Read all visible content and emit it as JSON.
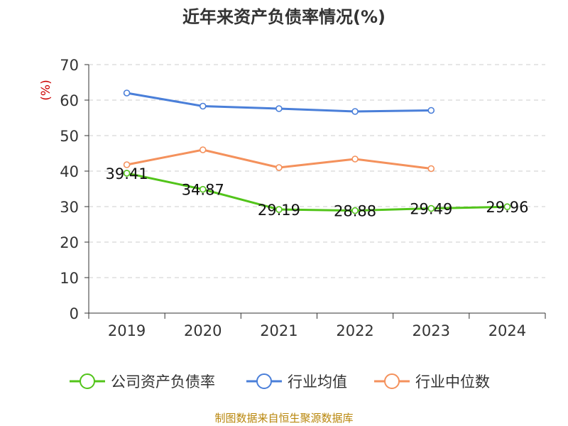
{
  "chart_data": {
    "type": "line",
    "title": "近年来资产负债率情况(%)",
    "ylabel": "(%)",
    "xlabel": "",
    "categories": [
      "2019",
      "2020",
      "2021",
      "2022",
      "2023",
      "2024"
    ],
    "ylim": [
      0,
      70
    ],
    "yticks": [
      0,
      10,
      20,
      30,
      40,
      50,
      60,
      70
    ],
    "grid": true,
    "legend_position": "bottom",
    "series": [
      {
        "name": "公司资产负债率",
        "color": "#52c41a",
        "values": [
          39.41,
          34.87,
          29.19,
          28.88,
          29.49,
          29.96
        ],
        "labels": [
          "39.41",
          "34.87",
          "29.19",
          "28.88",
          "29.49",
          "29.96"
        ]
      },
      {
        "name": "行业均值",
        "color": "#4a7fd9",
        "values": [
          62.0,
          58.3,
          57.6,
          56.8,
          57.1,
          null
        ]
      },
      {
        "name": "行业中位数",
        "color": "#f4915c",
        "values": [
          41.8,
          46.0,
          41.0,
          43.4,
          40.7,
          null
        ]
      }
    ]
  },
  "footer": "制图数据来自恒生聚源数据库",
  "colors": {
    "ylabel": "#cc0000",
    "axis": "#333333",
    "grid": "#cccccc",
    "footer": "#b8860b"
  }
}
